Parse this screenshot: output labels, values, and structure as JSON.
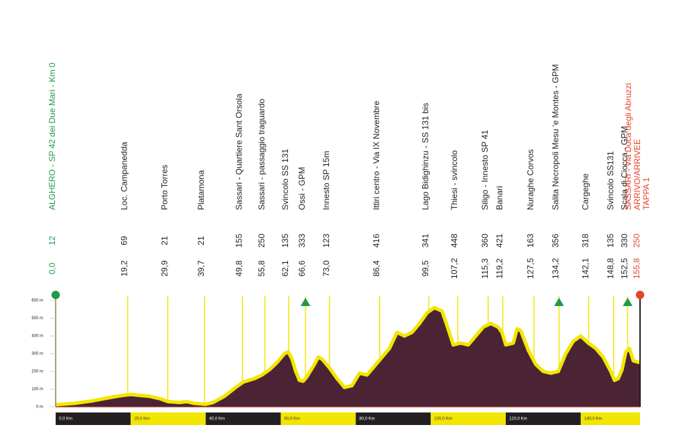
{
  "chart_data": {
    "type": "area",
    "x": [
      0,
      5,
      10,
      15,
      18,
      20,
      25,
      28,
      30,
      33,
      35,
      37,
      40,
      42,
      45,
      48,
      50,
      53,
      55,
      57,
      59,
      61,
      62,
      63,
      64,
      65,
      66,
      67,
      69,
      70,
      71,
      73,
      75,
      77,
      79,
      81,
      83,
      85,
      87,
      89,
      91,
      93,
      95,
      97,
      99,
      101,
      103,
      104,
      106,
      108,
      110,
      112,
      114,
      116,
      118,
      119,
      120,
      122,
      123,
      124,
      126,
      128,
      130,
      132,
      134,
      136,
      138,
      140,
      142,
      144,
      146,
      148,
      149,
      150,
      151,
      152,
      153,
      154,
      155.8
    ],
    "values": [
      12,
      20,
      35,
      55,
      65,
      70,
      60,
      45,
      30,
      25,
      30,
      20,
      15,
      25,
      60,
      110,
      140,
      160,
      180,
      210,
      250,
      300,
      310,
      270,
      200,
      150,
      145,
      170,
      240,
      280,
      270,
      220,
      160,
      110,
      120,
      190,
      180,
      230,
      280,
      330,
      420,
      400,
      420,
      470,
      530,
      560,
      540,
      480,
      350,
      360,
      350,
      400,
      450,
      470,
      450,
      420,
      350,
      360,
      440,
      430,
      320,
      240,
      200,
      190,
      200,
      300,
      370,
      400,
      360,
      330,
      280,
      200,
      150,
      160,
      210,
      310,
      330,
      260,
      250
    ],
    "color": "#4a2434",
    "line_color": "#f2e600",
    "xlim": [
      0,
      155.8
    ],
    "ylim": [
      0,
      600
    ],
    "yticks": [
      {
        "value": 0,
        "label": "0 m"
      },
      {
        "value": 100,
        "label": "100 m"
      },
      {
        "value": 200,
        "label": "200 m"
      },
      {
        "value": 300,
        "label": "300 m"
      },
      {
        "value": 400,
        "label": "400 m"
      },
      {
        "value": 500,
        "label": "500 m"
      },
      {
        "value": 600,
        "label": "600 m"
      }
    ],
    "xticks": [
      {
        "value": 0,
        "label": "0,0 Km"
      },
      {
        "value": 20,
        "label": "20,0 Km"
      },
      {
        "value": 40,
        "label": "40,0 Km"
      },
      {
        "value": 60,
        "label": "60,0 Km"
      },
      {
        "value": 80,
        "label": "80,0 Km"
      },
      {
        "value": 100,
        "label": "100,0 Km"
      },
      {
        "value": 120,
        "label": "120,0 Km"
      },
      {
        "value": 140,
        "label": "140,0 Km"
      }
    ],
    "points": {
      "names": [
        "ALGHERO - SP 42 dei Due Mari - Km 0",
        "Loc. Campanedda",
        "Porto Torres",
        "Platamona",
        "Sassari - Quartiere Sant Orsola",
        "Sassari - passaggio traguardo",
        "Svincolo SS 131",
        "Ossi - GPM",
        "Innesto SP 15m",
        "Ittiri centro - Via IX Novembre",
        "Lago Bidighinzu - SS 131 bis",
        "Thiesi - svincolo",
        "Siligo - Innesto SP 41",
        "Banari",
        "Nuraghe Corvos",
        "Salita Necropoli Mesu 'e Montes - GPM",
        "Cargeghe",
        "Svincolo SS131",
        "Scala di Ciocca - GPM",
        [
          "SASSARI - Via Duca degli Abruzzi",
          "ARRIVO/ARRIVEE",
          "TAPPA 1"
        ]
      ],
      "altitudes": [
        12,
        69,
        21,
        21,
        155,
        250,
        135,
        333,
        123,
        416,
        341,
        448,
        360,
        421,
        163,
        356,
        318,
        135,
        330,
        250
      ],
      "km": [
        {
          "value": 0,
          "label": "0,0"
        },
        {
          "value": 19.2,
          "label": "19,2"
        },
        {
          "value": 29.9,
          "label": "29,9"
        },
        {
          "value": 39.7,
          "label": "39,7"
        },
        {
          "value": 49.8,
          "label": "49,8"
        },
        {
          "value": 55.8,
          "label": "55,8"
        },
        {
          "value": 62.1,
          "label": "62,1"
        },
        {
          "value": 66.6,
          "label": "66,6"
        },
        {
          "value": 73.0,
          "label": "73,0"
        },
        {
          "value": 86.4,
          "label": "86,4"
        },
        {
          "value": 99.5,
          "label": "99,5"
        },
        {
          "value": 107.2,
          "label": "107,2"
        },
        {
          "value": 115.3,
          "label": "115,3"
        },
        {
          "value": 119.2,
          "label": "119,2"
        },
        {
          "value": 127.5,
          "label": "127,5"
        },
        {
          "value": 134.2,
          "label": "134,2"
        },
        {
          "value": 142.1,
          "label": "142,1"
        },
        {
          "value": 148.8,
          "label": "148,8"
        },
        {
          "value": 152.5,
          "label": "152,5"
        },
        {
          "value": 155.8,
          "label": "155,8"
        }
      ],
      "gpm": [
        7,
        15,
        18
      ],
      "start_color": "#1f9a48",
      "finish_color": "#e4452b",
      "gpm_color": "#1f9a48"
    }
  }
}
